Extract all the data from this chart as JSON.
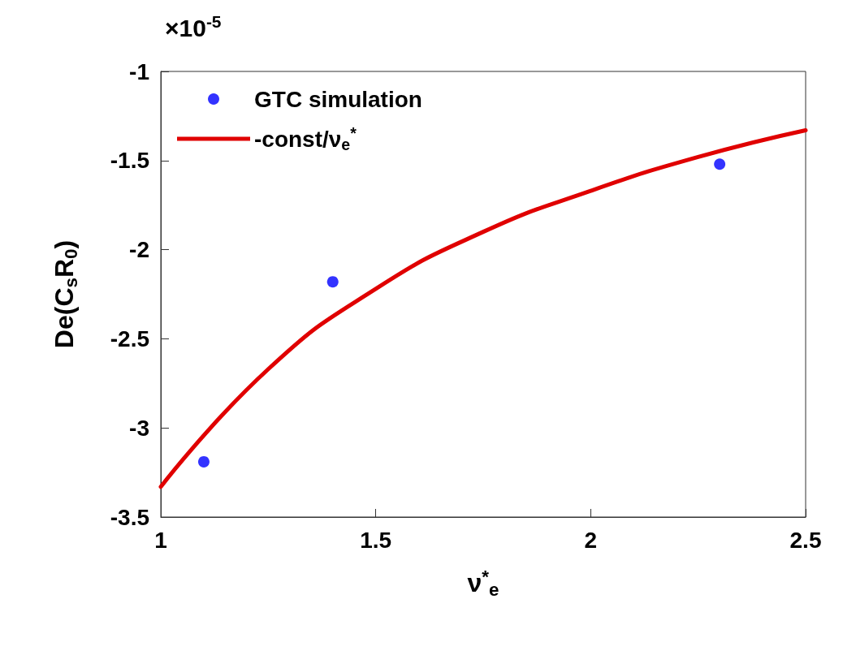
{
  "chart_data": {
    "type": "scatter",
    "xlabel": "ν$^{*}$$_{e}$",
    "ylabel": "De(C$_{s}$R$_{0}$)",
    "annotations": [
      "×10$^{-5}$"
    ],
    "xlim": [
      1,
      2.5
    ],
    "xticks": [
      1,
      1.5,
      2,
      2.5
    ],
    "ylim": [
      -3.5,
      -1
    ],
    "yticks": [
      -3.5,
      -3,
      -2.5,
      -2,
      -1.5,
      -1
    ],
    "grid": false,
    "legend": "top left",
    "series": [
      {
        "name": "GTC simulation",
        "marker": "circle",
        "color": "#0000ff",
        "x": [
          1.1,
          1.4,
          2.3
        ],
        "values": [
          -3.19,
          -2.18,
          -1.52
        ]
      },
      {
        "name": "-const/ν$_{e}$$^{*}$",
        "type": "line",
        "marker": "none",
        "line_style": "solid",
        "color": "#e00000",
        "x": [
          1,
          1.25,
          1.5,
          1.75,
          2,
          2.25,
          2.5
        ],
        "values": [
          -3.33,
          -2.67,
          -2.22,
          -1.9,
          -1.67,
          -1.48,
          -1.33
        ]
      }
    ]
  }
}
